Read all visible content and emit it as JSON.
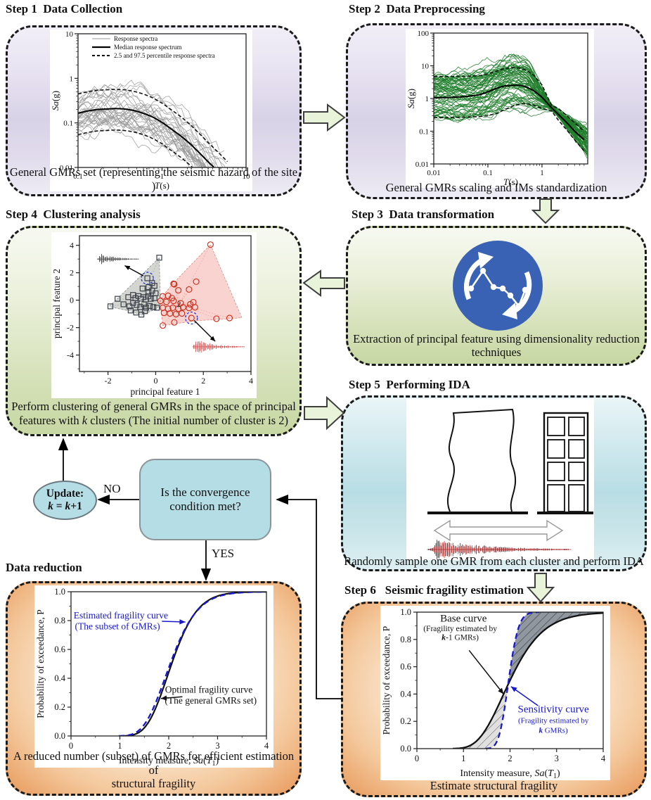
{
  "titles": {
    "step1": "Step 1  Data Collection",
    "step2": "Step 2  Data Preprocessing",
    "step3": "Step 3  Data transformation",
    "step4": "Step 4  Clustering analysis",
    "step5": "Step 5  Performing IDA",
    "step6": "Step 6   Seismic fragility estimation",
    "data_reduction": "Data reduction"
  },
  "captions": {
    "step1": "General GMRs set (representing the seismic hazard of the site )",
    "step2": "General GMRs scaling and IMs standardization",
    "step3_line1": "Extraction of principal feature  using dimensionality reduction",
    "step3_line2": "techniques",
    "step4_line1": "Perform clustering of general GMRs  in the space of principal",
    "step4_line2": [
      {
        "t": "features with "
      },
      {
        "t": "k",
        "i": true
      },
      {
        "t": " clusters (The initial number of cluster is 2)"
      }
    ],
    "step5": "Randomly sample one GMR from each cluster and perform IDA",
    "dr_line1": "A reduced number (subset) of GMRs for efficient estimation of",
    "dr_line2": "structural fragility",
    "step6": "Estimate structural fragility"
  },
  "flow": {
    "decision": "Is the convergence condition met?",
    "no_label": "NO",
    "yes_label": "YES",
    "update_line1": "Update:",
    "update_line2": [
      {
        "t": "k",
        "i": true,
        "b": true
      },
      {
        "t": " = ",
        "b": true
      },
      {
        "t": "k",
        "i": true,
        "b": true
      },
      {
        "t": "+1",
        "b": true
      }
    ]
  },
  "colors": {
    "transform_icon": "#3a62b4",
    "node_fill": "#b5dde6",
    "flow_arrow_fill": "#e8f3da",
    "spectra_gray": "#9a9a9a",
    "spectra_green": "#1e7d2a",
    "cluster1": "#3a4048",
    "cluster2": "#cc3322",
    "fragility_blue": "#1818cc"
  },
  "chart_data": [
    {
      "id": "step1_spectra",
      "kind": "spectra",
      "type": "line",
      "mode": "raw",
      "seed": 7,
      "xlim": [
        0.1,
        10
      ],
      "ylim": [
        0.01,
        10
      ],
      "xticks": [
        0.1,
        1,
        10
      ],
      "yticks": [
        0.01,
        0.1,
        1,
        10
      ],
      "xlabel": [
        {
          "t": "T",
          "i": true
        },
        {
          "t": "(s)"
        }
      ],
      "ylabel": [
        {
          "t": "Sa",
          "i": true
        },
        {
          "t": "(g)"
        }
      ],
      "legend": [
        {
          "label": "Response spectra",
          "style": "thin"
        },
        {
          "label": "Median response spectrum",
          "style": "thick"
        },
        {
          "label": "2.5 and 97.5 percentile response spectra",
          "style": "dashed"
        }
      ],
      "n_curves": 32,
      "curve_color": "#9a9a9a",
      "median": {
        "T": [
          0.1,
          0.13,
          0.17,
          0.22,
          0.28,
          0.36,
          0.46,
          0.6,
          0.78,
          1.0,
          1.3,
          1.7,
          2.2,
          2.8,
          3.6,
          4.7,
          6.0
        ],
        "Sa": [
          0.165,
          0.185,
          0.2,
          0.205,
          0.21,
          0.205,
          0.19,
          0.165,
          0.135,
          0.103,
          0.072,
          0.05,
          0.033,
          0.021,
          0.013,
          0.008,
          0.005
        ]
      },
      "pct_hi_factor": 2.7,
      "pct_lo_factor": 0.33
    },
    {
      "id": "step2_spectra",
      "kind": "spectra",
      "type": "line",
      "mode": "scaled",
      "seed": 11,
      "xlim": [
        0.01,
        7
      ],
      "ylim": [
        0.01,
        100
      ],
      "xticks": [
        0.01,
        0.1,
        1
      ],
      "yticks": [
        0.01,
        0.1,
        1,
        10,
        100
      ],
      "xlabel": [
        {
          "t": "T",
          "i": true
        },
        {
          "t": "(s)"
        }
      ],
      "ylabel": [
        {
          "t": "Sa",
          "i": true
        },
        {
          "t": "(g)"
        }
      ],
      "n_curves": 72,
      "curve_color": "#1e7d2a",
      "median": {
        "T": [
          0.01,
          0.02,
          0.04,
          0.07,
          0.1,
          0.15,
          0.2,
          0.3,
          0.4,
          0.5,
          0.7,
          1.0,
          1.5,
          2.0,
          3.0,
          4.0,
          6.0
        ],
        "Sa": [
          1.05,
          1.08,
          1.15,
          1.3,
          1.6,
          2.1,
          2.4,
          2.55,
          2.5,
          2.3,
          1.75,
          1.1,
          0.52,
          0.33,
          0.17,
          0.1,
          0.055
        ]
      },
      "pct_hi": {
        "T": [
          0.01,
          0.02,
          0.04,
          0.07,
          0.1,
          0.15,
          0.2,
          0.3,
          0.4,
          0.5,
          0.7,
          1.0,
          1.5,
          2.0,
          3.0,
          4.0,
          6.0
        ],
        "Sa": [
          4.7,
          4.7,
          4.75,
          5.0,
          5.6,
          7.0,
          8.2,
          8.8,
          8.4,
          7.4,
          5.2,
          2.6,
          0.62,
          0.5,
          0.28,
          0.18,
          0.1
        ]
      },
      "pct_lo": {
        "T": [
          0.01,
          0.02,
          0.04,
          0.07,
          0.1,
          0.15,
          0.2,
          0.3,
          0.4,
          0.5,
          0.7,
          1.0,
          1.5,
          2.0,
          3.0,
          4.0,
          6.0
        ],
        "Sa": [
          0.26,
          0.26,
          0.27,
          0.28,
          0.3,
          0.36,
          0.45,
          0.6,
          0.68,
          0.7,
          0.62,
          0.5,
          0.42,
          0.22,
          0.1,
          0.055,
          0.025
        ]
      }
    },
    {
      "id": "pca_scatter",
      "kind": "scatter",
      "type": "scatter",
      "xlim": [
        -3.2,
        4
      ],
      "ylim": [
        -5.2,
        4.7
      ],
      "xticks": [
        -2,
        0,
        2,
        4
      ],
      "yticks": [
        -4,
        -2,
        0,
        2,
        4
      ],
      "xlabel": "principal feature 1",
      "ylabel": "principal feature 2",
      "clusters": [
        {
          "name": "cluster-1",
          "marker": "square",
          "color": "#3a4048",
          "hull_fill": "rgba(140,145,135,0.38)",
          "label": "1",
          "label_pos": [
            -0.62,
            -0.02
          ],
          "label_color": "#ffffff",
          "points": [
            [
              0.15,
              3.1
            ],
            [
              -0.35,
              1.6
            ],
            [
              -0.15,
              1.25
            ],
            [
              -0.05,
              1.05
            ],
            [
              -0.3,
              0.95
            ],
            [
              -0.55,
              0.85
            ],
            [
              -0.15,
              0.7
            ],
            [
              -0.3,
              0.55
            ],
            [
              0.0,
              0.5
            ],
            [
              -1.6,
              0.1
            ],
            [
              -1.15,
              0.22
            ],
            [
              -0.95,
              0.38
            ],
            [
              -0.85,
              0.15
            ],
            [
              -0.72,
              0.3
            ],
            [
              -0.62,
              0.1
            ],
            [
              -0.52,
              0.22
            ],
            [
              -0.42,
              0.05
            ],
            [
              -0.32,
              0.28
            ],
            [
              -0.2,
              0.1
            ],
            [
              -0.05,
              0.15
            ],
            [
              -1.9,
              -0.45
            ],
            [
              -1.35,
              -0.3
            ],
            [
              -1.1,
              -0.45
            ],
            [
              -0.95,
              -0.2
            ],
            [
              -0.8,
              -0.35
            ],
            [
              -0.65,
              -0.5
            ],
            [
              -0.5,
              -0.3
            ],
            [
              -0.4,
              -0.55
            ],
            [
              -0.25,
              -0.42
            ],
            [
              -0.1,
              -0.5
            ],
            [
              -1.05,
              -0.75
            ],
            [
              -0.82,
              -0.9
            ],
            [
              -0.6,
              -1.05
            ],
            [
              -0.45,
              -0.8
            ],
            [
              0.05,
              -0.55
            ]
          ],
          "hull": [
            [
              0.15,
              3.1
            ],
            [
              0.2,
              -0.25
            ],
            [
              0.05,
              -0.62
            ],
            [
              -0.6,
              -1.1
            ],
            [
              -1.05,
              -0.8
            ],
            [
              -1.9,
              -0.5
            ],
            [
              -1.93,
              -0.4
            ],
            [
              -1.6,
              0.12
            ]
          ]
        },
        {
          "name": "cluster-2",
          "marker": "circle",
          "color": "#cc3322",
          "hull_fill": "rgba(240,140,130,0.38)",
          "label": "2",
          "label_pos": [
            0.98,
            -0.28
          ],
          "label_color": "#333333",
          "points": [
            [
              2.3,
              4.05
            ],
            [
              0.75,
              1.2
            ],
            [
              0.78,
              1.16
            ],
            [
              1.7,
              1.35
            ],
            [
              0.95,
              0.72
            ],
            [
              1.4,
              0.78
            ],
            [
              0.3,
              0.28
            ],
            [
              0.52,
              0.32
            ],
            [
              0.68,
              0.15
            ],
            [
              0.2,
              -0.05
            ],
            [
              0.45,
              -0.12
            ],
            [
              0.75,
              -0.05
            ],
            [
              1.05,
              -0.22
            ],
            [
              1.45,
              -0.3
            ],
            [
              1.58,
              -0.15
            ],
            [
              0.3,
              -0.55
            ],
            [
              0.52,
              -0.62
            ],
            [
              0.72,
              -0.55
            ],
            [
              0.95,
              -0.62
            ],
            [
              1.15,
              -0.52
            ],
            [
              1.4,
              -0.57
            ],
            [
              1.65,
              -0.52
            ],
            [
              0.35,
              -0.92
            ],
            [
              0.6,
              -0.97
            ],
            [
              0.85,
              -1.02
            ],
            [
              1.1,
              -0.97
            ],
            [
              1.5,
              -1.3
            ],
            [
              2.55,
              -1.35
            ],
            [
              3.1,
              -1.3
            ],
            [
              0.3,
              -1.85
            ],
            [
              0.78,
              -1.62
            ]
          ],
          "hull": [
            [
              2.3,
              4.05
            ],
            [
              3.62,
              -1.28
            ],
            [
              3.1,
              -1.35
            ],
            [
              1.7,
              -1.5
            ],
            [
              0.3,
              -1.85
            ],
            [
              0.18,
              -0.1
            ],
            [
              0.28,
              0.3
            ],
            [
              0.73,
              1.22
            ]
          ]
        }
      ],
      "highlights": [
        [
          -0.35,
          1.6
        ],
        [
          1.5,
          -1.3
        ]
      ],
      "arrows": [
        {
          "x1": -0.52,
          "y1": 1.78,
          "x2": -1.3,
          "y2": 2.52
        },
        {
          "x1": 1.62,
          "y1": -1.48,
          "x2": 2.5,
          "y2": -3.0
        }
      ],
      "waveforms": [
        {
          "x0": -2.45,
          "x1": -0.7,
          "y": 3.0,
          "amp": 0.5,
          "color": "#111111",
          "seed": 3
        },
        {
          "x0": 1.55,
          "x1": 3.75,
          "y": -3.4,
          "amp": 0.6,
          "color": "#cc2222",
          "seed": 5
        }
      ]
    },
    {
      "id": "ida_illustration",
      "kind": "illustration",
      "type": "other",
      "elements": [
        "deformed-structure-outline",
        "frame-building",
        "ground-lines",
        "interaction-double-arrow",
        "ground-motion-waveform"
      ],
      "waveform_colors": [
        "#111111",
        "#cc2222"
      ]
    },
    {
      "id": "fragility_reduction",
      "kind": "fragility",
      "type": "line",
      "xlim": [
        0,
        4
      ],
      "ylim": [
        0,
        1
      ],
      "xticks": [
        0,
        1,
        2,
        3,
        4
      ],
      "yticks": [
        0,
        0.2,
        0.4,
        0.6,
        0.8,
        1.0
      ],
      "ylabel": "Probability of exceedance, P",
      "xlabel": [
        {
          "t": "Intensity measure, "
        },
        {
          "t": "Sa",
          "i": true
        },
        {
          "t": "("
        },
        {
          "t": "T",
          "i": true
        },
        {
          "t": "1",
          "sub": true
        },
        {
          "t": ")"
        }
      ],
      "curves": [
        {
          "name": "Optimal fragility curve (The general GMRs set)",
          "color": "#111111",
          "median": 2.06,
          "beta": 0.2,
          "width": 2.2
        },
        {
          "name": "Estimated fragility curve (The subset of GMRs)",
          "color": "#1818cc",
          "median": 2.03,
          "beta": 0.215,
          "dash": "8 5",
          "width": 2.3
        }
      ],
      "annotations": [
        {
          "color": "#1818cc",
          "lines": [
            {
              "x": 1.02,
              "y": 0.815,
              "size": 13.5,
              "segs": [
                {
                  "t": "Estimated fragility curve"
                }
              ]
            },
            {
              "x": 0.95,
              "y": 0.74,
              "size": 13.5,
              "segs": [
                {
                  "t": "(The subset of GMRs)"
                }
              ]
            }
          ],
          "arrow": {
            "x1": 1.86,
            "y1": 0.795,
            "x2": 2.34,
            "y2": 0.79
          }
        },
        {
          "color": "#111111",
          "lines": [
            {
              "x": 2.82,
              "y": 0.3,
              "size": 13.5,
              "segs": [
                {
                  "t": "Optimal fragility curve"
                }
              ]
            },
            {
              "x": 2.86,
              "y": 0.225,
              "size": 13.5,
              "segs": [
                {
                  "t": "(The general GMRs set)"
                }
              ]
            }
          ],
          "arrow": {
            "x1": 2.28,
            "y1": 0.272,
            "x2": 1.84,
            "y2": 0.26
          }
        }
      ]
    },
    {
      "id": "fragility_step6",
      "kind": "fragility",
      "type": "line",
      "xlim": [
        0,
        4
      ],
      "ylim": [
        0,
        1
      ],
      "xticks": [
        0,
        1,
        2,
        3,
        4
      ],
      "yticks": [
        0,
        0.2,
        0.4,
        0.6,
        0.8,
        1.0
      ],
      "ylabel": "Probability of exceedance, P",
      "xlabel": [
        {
          "t": "Intensity measure, "
        },
        {
          "t": "Sa",
          "i": true
        },
        {
          "t": "("
        },
        {
          "t": "T",
          "i": true
        },
        {
          "t": "1",
          "sub": true
        },
        {
          "t": ")"
        }
      ],
      "curves": [
        {
          "name": "Base curve (Fragility estimated by k-1 GMRs)",
          "color": "#111111",
          "median": 2.0,
          "beta": 0.28,
          "width": 2.3
        },
        {
          "name": "Sensitivity curve (Fragility estimated by k GMRs)",
          "color": "#1818cc",
          "median": 1.97,
          "beta": 0.085,
          "dash": "8 5",
          "width": 2.3
        }
      ],
      "band": {
        "lower_fill": "#dedede",
        "upper_fill": "#8b929a",
        "hatch_lower": "#666666",
        "hatch_upper": "#2e3238"
      },
      "annotations": [
        {
          "color": "#111111",
          "lines": [
            {
              "x": 1.0,
              "y": 0.93,
              "size": 15,
              "segs": [
                {
                  "t": "Base curve"
                }
              ]
            },
            {
              "x": 0.93,
              "y": 0.862,
              "size": 11.5,
              "segs": [
                {
                  "t": "(Fragility estimated by"
                }
              ]
            },
            {
              "x": 0.93,
              "y": 0.797,
              "size": 11.5,
              "segs": [
                {
                  "t": "k",
                  "i": true,
                  "b": true
                },
                {
                  "t": "-1 GMRs)"
                }
              ]
            }
          ],
          "arrow": {
            "x1": 1.12,
            "y1": 0.72,
            "x2": 1.86,
            "y2": 0.4
          }
        },
        {
          "color": "#1818cc",
          "lines": [
            {
              "x": 2.93,
              "y": 0.265,
              "size": 15,
              "segs": [
                {
                  "t": "Sensitivity curve"
                }
              ]
            },
            {
              "x": 2.93,
              "y": 0.188,
              "size": 11,
              "segs": [
                {
                  "t": "(Fragility estimated by"
                }
              ]
            },
            {
              "x": 2.93,
              "y": 0.115,
              "size": 11,
              "segs": [
                {
                  "t": "k",
                  "i": true,
                  "b": true
                },
                {
                  "t": " GMRs)"
                }
              ]
            }
          ],
          "arrow": {
            "x1": 2.6,
            "y1": 0.315,
            "x2": 2.02,
            "y2": 0.455
          }
        }
      ]
    }
  ]
}
